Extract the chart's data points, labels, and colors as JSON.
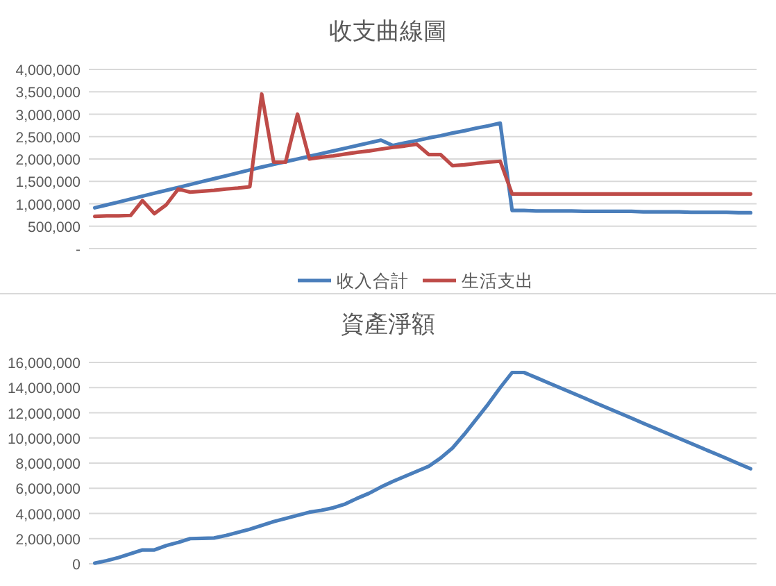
{
  "chart_data": [
    {
      "type": "line",
      "title": "收支曲線圖",
      "categories": [
        null,
        null,
        null,
        null,
        null,
        null,
        null,
        null,
        null,
        null,
        null,
        null,
        null,
        null,
        null,
        null,
        null,
        null,
        null,
        null,
        null,
        null,
        null,
        null,
        null,
        null,
        null,
        null,
        null,
        null,
        null,
        null,
        null,
        null,
        null,
        null,
        null,
        null,
        null,
        null,
        null,
        null,
        null,
        null,
        null,
        null,
        null,
        null,
        null,
        null,
        null,
        null,
        null,
        null,
        null,
        null
      ],
      "series": [
        {
          "name": "收入合計",
          "color": "#4a7ebb",
          "values": [
            910000,
            975000,
            1040000,
            1105000,
            1170000,
            1235000,
            1300000,
            1365000,
            1430000,
            1495000,
            1560000,
            1625000,
            1690000,
            1755000,
            1820000,
            1880000,
            1940000,
            2000000,
            2060000,
            2120000,
            2180000,
            2240000,
            2300000,
            2360000,
            2420000,
            2300000,
            2360000,
            2410000,
            2470000,
            2520000,
            2580000,
            2630000,
            2690000,
            2740000,
            2800000,
            850000,
            850000,
            840000,
            840000,
            840000,
            840000,
            830000,
            830000,
            830000,
            830000,
            830000,
            820000,
            820000,
            820000,
            820000,
            810000,
            810000,
            810000,
            810000,
            800000,
            800000
          ]
        },
        {
          "name": "生活支出",
          "color": "#be4b48",
          "values": [
            720000,
            730000,
            730000,
            740000,
            1070000,
            780000,
            980000,
            1330000,
            1260000,
            1280000,
            1300000,
            1330000,
            1350000,
            1380000,
            3450000,
            1930000,
            1930000,
            3000000,
            2000000,
            2040000,
            2070000,
            2110000,
            2150000,
            2180000,
            2220000,
            2260000,
            2290000,
            2330000,
            2100000,
            2100000,
            1850000,
            1870000,
            1900000,
            1930000,
            1950000,
            1220000,
            1220000,
            1220000,
            1220000,
            1220000,
            1220000,
            1220000,
            1220000,
            1220000,
            1220000,
            1220000,
            1220000,
            1220000,
            1220000,
            1220000,
            1220000,
            1220000,
            1220000,
            1220000,
            1220000,
            1220000
          ]
        }
      ],
      "ylim": [
        0,
        4000000
      ],
      "yticks": [
        {
          "value": 0,
          "label": "-"
        },
        {
          "value": 500000,
          "label": "500,000"
        },
        {
          "value": 1000000,
          "label": "1,000,000"
        },
        {
          "value": 1500000,
          "label": "1,500,000"
        },
        {
          "value": 2000000,
          "label": "2,000,000"
        },
        {
          "value": 2500000,
          "label": "2,500,000"
        },
        {
          "value": 3000000,
          "label": "3,000,000"
        },
        {
          "value": 3500000,
          "label": "3,500,000"
        },
        {
          "value": 4000000,
          "label": "4,000,000"
        }
      ],
      "grid": "y",
      "legend": "bottom"
    },
    {
      "type": "line",
      "title": "資產淨額",
      "categories": [
        null,
        null,
        null,
        null,
        null,
        null,
        null,
        null,
        null,
        null,
        null,
        null,
        null,
        null,
        null,
        null,
        null,
        null,
        null,
        null,
        null,
        null,
        null,
        null,
        null,
        null,
        null,
        null,
        null,
        null,
        null,
        null,
        null,
        null,
        null,
        null,
        null,
        null,
        null,
        null,
        null,
        null,
        null,
        null,
        null,
        null,
        null,
        null,
        null,
        null,
        null,
        null,
        null,
        null,
        null,
        null
      ],
      "series": [
        {
          "color": "#4a7ebb",
          "values": [
            50000,
            250000,
            500000,
            800000,
            1100000,
            1100000,
            1450000,
            1700000,
            2000000,
            2020000,
            2050000,
            2250000,
            2500000,
            2750000,
            3050000,
            3350000,
            3600000,
            3850000,
            4100000,
            4250000,
            4450000,
            4750000,
            5200000,
            5600000,
            6100000,
            6550000,
            6950000,
            7350000,
            7750000,
            8400000,
            9200000,
            10300000,
            11500000,
            12700000,
            14000000,
            15200000,
            15200000,
            14800000,
            14390000,
            13990000,
            13590000,
            13190000,
            12780000,
            12380000,
            11980000,
            11580000,
            11170000,
            10770000,
            10370000,
            9970000,
            9570000,
            9160000,
            8760000,
            8360000,
            7950000,
            7550000
          ]
        }
      ],
      "ylim": [
        0,
        16000000
      ],
      "yticks": [
        0,
        {
          "value": 2000000,
          "label": "2,000,000"
        },
        {
          "value": 4000000,
          "label": "4,000,000"
        },
        {
          "value": 6000000,
          "label": "6,000,000"
        },
        {
          "value": 8000000,
          "label": "8,000,000"
        },
        {
          "value": 10000000,
          "label": "10,000,000"
        },
        {
          "value": 12000000,
          "label": "12,000,000"
        },
        {
          "value": 14000000,
          "label": "14,000,000"
        },
        {
          "value": 16000000,
          "label": "16,000,000"
        }
      ],
      "grid": "y"
    }
  ]
}
